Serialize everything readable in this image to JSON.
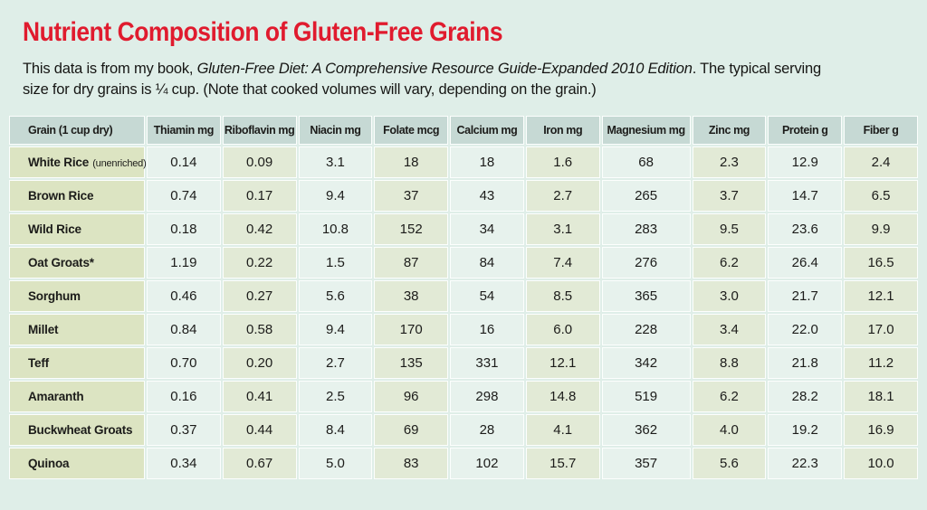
{
  "page": {
    "title": "Nutrient Composition of Gluten-Free Grains",
    "intro": {
      "prefix": "This data is from my book, ",
      "book_title": "Gluten-Free Diet: A Comprehensive Resource Guide-Expanded 2010 Edition",
      "suffix": ". The typical serving size for dry grains is ¼ cup. (Note that cooked volumes will vary, depending on the grain.)"
    }
  },
  "colors": {
    "page_bg": "#dfeee8",
    "title_red": "#e01b2e",
    "header_bg": "#c6d9d4",
    "grain_col_bg": "#dce4c2",
    "col_mint": "#e7f2ed",
    "col_sage": "#e2ead6",
    "cell_gap": "#fcfefd",
    "text": "#1c1c1a"
  },
  "table": {
    "headers": [
      "Grain (1 cup dry)",
      "Thiamin mg",
      "Riboflavin mg",
      "Niacin mg",
      "Folate mcg",
      "Calcium mg",
      "Iron mg",
      "Magnesium mg",
      "Zinc mg",
      "Protein g",
      "Fiber g"
    ],
    "rows": [
      {
        "grain": "White Rice",
        "note": "(unenriched)",
        "values": [
          "0.14",
          "0.09",
          "3.1",
          "18",
          "18",
          "1.6",
          "68",
          "2.3",
          "12.9",
          "2.4"
        ]
      },
      {
        "grain": "Brown Rice",
        "values": [
          "0.74",
          "0.17",
          "9.4",
          "37",
          "43",
          "2.7",
          "265",
          "3.7",
          "14.7",
          "6.5"
        ]
      },
      {
        "grain": "Wild Rice",
        "values": [
          "0.18",
          "0.42",
          "10.8",
          "152",
          "34",
          "3.1",
          "283",
          "9.5",
          "23.6",
          "9.9"
        ]
      },
      {
        "grain": "Oat Groats*",
        "values": [
          "1.19",
          "0.22",
          "1.5",
          "87",
          "84",
          "7.4",
          "276",
          "6.2",
          "26.4",
          "16.5"
        ]
      },
      {
        "grain": "Sorghum",
        "values": [
          "0.46",
          "0.27",
          "5.6",
          "38",
          "54",
          "8.5",
          "365",
          "3.0",
          "21.7",
          "12.1"
        ]
      },
      {
        "grain": "Millet",
        "values": [
          "0.84",
          "0.58",
          "9.4",
          "170",
          "16",
          "6.0",
          "228",
          "3.4",
          "22.0",
          "17.0"
        ]
      },
      {
        "grain": "Teff",
        "values": [
          "0.70",
          "0.20",
          "2.7",
          "135",
          "331",
          "12.1",
          "342",
          "8.8",
          "21.8",
          "11.2"
        ]
      },
      {
        "grain": "Amaranth",
        "values": [
          "0.16",
          "0.41",
          "2.5",
          "96",
          "298",
          "14.8",
          "519",
          "6.2",
          "28.2",
          "18.1"
        ]
      },
      {
        "grain": "Buckwheat Groats",
        "values": [
          "0.37",
          "0.44",
          "8.4",
          "69",
          "28",
          "4.1",
          "362",
          "4.0",
          "19.2",
          "16.9"
        ]
      },
      {
        "grain": "Quinoa",
        "values": [
          "0.34",
          "0.67",
          "5.0",
          "83",
          "102",
          "15.7",
          "357",
          "5.6",
          "22.3",
          "10.0"
        ]
      }
    ]
  },
  "chart_data": {
    "type": "table",
    "title": "Nutrient Composition of Gluten-Free Grains",
    "columns": [
      "Grain (1 cup dry)",
      "Thiamin mg",
      "Riboflavin mg",
      "Niacin mg",
      "Folate mcg",
      "Calcium mg",
      "Iron mg",
      "Magnesium mg",
      "Zinc mg",
      "Protein g",
      "Fiber g"
    ],
    "rows": [
      [
        "White Rice (unenriched)",
        0.14,
        0.09,
        3.1,
        18,
        18,
        1.6,
        68,
        2.3,
        12.9,
        2.4
      ],
      [
        "Brown Rice",
        0.74,
        0.17,
        9.4,
        37,
        43,
        2.7,
        265,
        3.7,
        14.7,
        6.5
      ],
      [
        "Wild Rice",
        0.18,
        0.42,
        10.8,
        152,
        34,
        3.1,
        283,
        9.5,
        23.6,
        9.9
      ],
      [
        "Oat Groats*",
        1.19,
        0.22,
        1.5,
        87,
        84,
        7.4,
        276,
        6.2,
        26.4,
        16.5
      ],
      [
        "Sorghum",
        0.46,
        0.27,
        5.6,
        38,
        54,
        8.5,
        365,
        3.0,
        21.7,
        12.1
      ],
      [
        "Millet",
        0.84,
        0.58,
        9.4,
        170,
        16,
        6.0,
        228,
        3.4,
        22.0,
        17.0
      ],
      [
        "Teff",
        0.7,
        0.2,
        2.7,
        135,
        331,
        12.1,
        342,
        8.8,
        21.8,
        11.2
      ],
      [
        "Amaranth",
        0.16,
        0.41,
        2.5,
        96,
        298,
        14.8,
        519,
        6.2,
        28.2,
        18.1
      ],
      [
        "Buckwheat Groats",
        0.37,
        0.44,
        8.4,
        69,
        28,
        4.1,
        362,
        4.0,
        19.2,
        16.9
      ],
      [
        "Quinoa",
        0.34,
        0.67,
        5.0,
        83,
        102,
        15.7,
        357,
        5.6,
        22.3,
        10.0
      ]
    ]
  }
}
